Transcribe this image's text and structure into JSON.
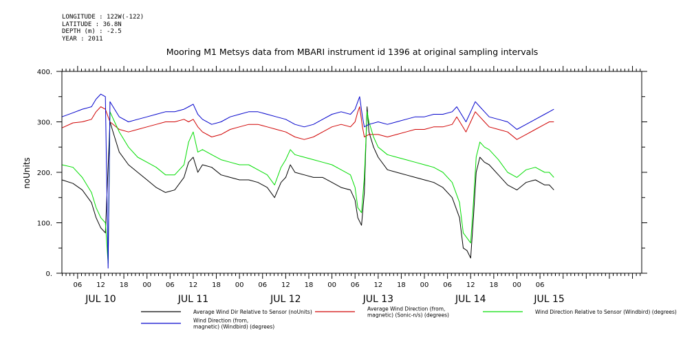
{
  "header": {
    "lines": [
      "LONGITUDE : 122W(-122)",
      "LATITUDE : 36.8N",
      "DEPTH (m) : -2.5",
      "YEAR : 2011"
    ]
  },
  "chart_data": {
    "type": "line",
    "title": "Mooring M1 Metsys data from MBARI instrument id 1396 at original sampling intervals",
    "ylabel": "noUnits",
    "xlabel": "",
    "ylim": [
      0,
      400
    ],
    "yticks": [
      0,
      100,
      200,
      300,
      400
    ],
    "xlim": [
      9.08,
      15.35
    ],
    "hour_ticks": [
      {
        "x": 9.25,
        "label": "06"
      },
      {
        "x": 9.5,
        "label": "12"
      },
      {
        "x": 9.75,
        "label": "18"
      },
      {
        "x": 10.0,
        "label": "00"
      },
      {
        "x": 10.25,
        "label": "06"
      },
      {
        "x": 10.5,
        "label": "12"
      },
      {
        "x": 10.75,
        "label": "18"
      },
      {
        "x": 11.0,
        "label": "00"
      },
      {
        "x": 11.25,
        "label": "06"
      },
      {
        "x": 11.5,
        "label": "12"
      },
      {
        "x": 11.75,
        "label": "18"
      },
      {
        "x": 12.0,
        "label": "00"
      },
      {
        "x": 12.25,
        "label": "06"
      },
      {
        "x": 12.5,
        "label": "12"
      },
      {
        "x": 12.75,
        "label": "18"
      },
      {
        "x": 13.0,
        "label": "00"
      },
      {
        "x": 13.25,
        "label": "06"
      },
      {
        "x": 13.5,
        "label": "12"
      },
      {
        "x": 13.75,
        "label": "18"
      },
      {
        "x": 14.0,
        "label": "00"
      },
      {
        "x": 14.25,
        "label": "06"
      }
    ],
    "date_labels": [
      {
        "x": 9.5,
        "label": "JUL 10"
      },
      {
        "x": 10.5,
        "label": "JUL 11"
      },
      {
        "x": 11.5,
        "label": "JUL 12"
      },
      {
        "x": 12.5,
        "label": "JUL 13"
      },
      {
        "x": 13.5,
        "label": "JUL 14"
      },
      {
        "x": 14.35,
        "label": "JUL 15"
      }
    ],
    "series": [
      {
        "name": "Average Wind Dir Relative to Sensor (noUnits)",
        "color": "#000000",
        "points": [
          [
            9.08,
            185
          ],
          [
            9.2,
            178
          ],
          [
            9.3,
            165
          ],
          [
            9.4,
            140
          ],
          [
            9.45,
            110
          ],
          [
            9.5,
            90
          ],
          [
            9.55,
            80
          ],
          [
            9.6,
            300
          ],
          [
            9.65,
            270
          ],
          [
            9.7,
            240
          ],
          [
            9.8,
            215
          ],
          [
            9.9,
            200
          ],
          [
            10.0,
            185
          ],
          [
            10.1,
            170
          ],
          [
            10.2,
            160
          ],
          [
            10.3,
            165
          ],
          [
            10.4,
            190
          ],
          [
            10.45,
            220
          ],
          [
            10.5,
            230
          ],
          [
            10.55,
            200
          ],
          [
            10.6,
            215
          ],
          [
            10.7,
            210
          ],
          [
            10.8,
            195
          ],
          [
            10.9,
            190
          ],
          [
            11.0,
            185
          ],
          [
            11.1,
            185
          ],
          [
            11.2,
            180
          ],
          [
            11.3,
            170
          ],
          [
            11.38,
            150
          ],
          [
            11.45,
            180
          ],
          [
            11.5,
            190
          ],
          [
            11.55,
            215
          ],
          [
            11.6,
            200
          ],
          [
            11.7,
            195
          ],
          [
            11.8,
            190
          ],
          [
            11.9,
            190
          ],
          [
            12.0,
            180
          ],
          [
            12.1,
            170
          ],
          [
            12.2,
            165
          ],
          [
            12.25,
            145
          ],
          [
            12.28,
            110
          ],
          [
            12.32,
            95
          ],
          [
            12.35,
            160
          ],
          [
            12.38,
            330
          ],
          [
            12.4,
            280
          ],
          [
            12.45,
            250
          ],
          [
            12.5,
            230
          ],
          [
            12.6,
            205
          ],
          [
            12.7,
            200
          ],
          [
            12.8,
            195
          ],
          [
            12.9,
            190
          ],
          [
            13.0,
            185
          ],
          [
            13.1,
            180
          ],
          [
            13.2,
            170
          ],
          [
            13.3,
            150
          ],
          [
            13.38,
            110
          ],
          [
            13.42,
            50
          ],
          [
            13.46,
            45
          ],
          [
            13.5,
            30
          ],
          [
            13.53,
            110
          ],
          [
            13.56,
            200
          ],
          [
            13.6,
            230
          ],
          [
            13.65,
            220
          ],
          [
            13.7,
            215
          ],
          [
            13.8,
            195
          ],
          [
            13.9,
            175
          ],
          [
            14.0,
            165
          ],
          [
            14.1,
            180
          ],
          [
            14.2,
            185
          ],
          [
            14.3,
            175
          ],
          [
            14.35,
            175
          ],
          [
            14.4,
            165
          ]
        ]
      },
      {
        "name": "Average Wind Direction (from, magnetic) (Sonic-n/s) (degrees)",
        "color": "#d00000",
        "points": [
          [
            9.08,
            288
          ],
          [
            9.2,
            298
          ],
          [
            9.3,
            300
          ],
          [
            9.4,
            305
          ],
          [
            9.45,
            320
          ],
          [
            9.5,
            330
          ],
          [
            9.55,
            325
          ],
          [
            9.6,
            300
          ],
          [
            9.7,
            285
          ],
          [
            9.8,
            280
          ],
          [
            9.9,
            285
          ],
          [
            10.0,
            290
          ],
          [
            10.1,
            295
          ],
          [
            10.2,
            300
          ],
          [
            10.3,
            300
          ],
          [
            10.4,
            305
          ],
          [
            10.45,
            300
          ],
          [
            10.5,
            305
          ],
          [
            10.55,
            290
          ],
          [
            10.6,
            280
          ],
          [
            10.7,
            270
          ],
          [
            10.8,
            275
          ],
          [
            10.9,
            285
          ],
          [
            11.0,
            290
          ],
          [
            11.1,
            295
          ],
          [
            11.2,
            295
          ],
          [
            11.3,
            290
          ],
          [
            11.4,
            285
          ],
          [
            11.5,
            280
          ],
          [
            11.6,
            270
          ],
          [
            11.7,
            265
          ],
          [
            11.8,
            270
          ],
          [
            11.9,
            280
          ],
          [
            12.0,
            290
          ],
          [
            12.1,
            295
          ],
          [
            12.2,
            290
          ],
          [
            12.25,
            300
          ],
          [
            12.28,
            320
          ],
          [
            12.3,
            330
          ],
          [
            12.33,
            290
          ],
          [
            12.35,
            270
          ],
          [
            12.4,
            275
          ],
          [
            12.5,
            275
          ],
          [
            12.6,
            270
          ],
          [
            12.7,
            275
          ],
          [
            12.8,
            280
          ],
          [
            12.9,
            285
          ],
          [
            13.0,
            285
          ],
          [
            13.1,
            290
          ],
          [
            13.2,
            290
          ],
          [
            13.3,
            295
          ],
          [
            13.35,
            310
          ],
          [
            13.4,
            295
          ],
          [
            13.45,
            280
          ],
          [
            13.5,
            300
          ],
          [
            13.55,
            320
          ],
          [
            13.6,
            310
          ],
          [
            13.65,
            300
          ],
          [
            13.7,
            290
          ],
          [
            13.8,
            285
          ],
          [
            13.9,
            280
          ],
          [
            14.0,
            265
          ],
          [
            14.1,
            275
          ],
          [
            14.2,
            285
          ],
          [
            14.3,
            295
          ],
          [
            14.35,
            300
          ],
          [
            14.4,
            300
          ]
        ]
      },
      {
        "name": "Wind Direction Relative to Sensor (Windbird) (degrees)",
        "color": "#00dd00",
        "points": [
          [
            9.08,
            215
          ],
          [
            9.2,
            210
          ],
          [
            9.3,
            190
          ],
          [
            9.4,
            160
          ],
          [
            9.45,
            130
          ],
          [
            9.5,
            110
          ],
          [
            9.55,
            100
          ],
          [
            9.58,
            20
          ],
          [
            9.6,
            320
          ],
          [
            9.65,
            300
          ],
          [
            9.7,
            280
          ],
          [
            9.8,
            250
          ],
          [
            9.9,
            230
          ],
          [
            10.0,
            220
          ],
          [
            10.1,
            210
          ],
          [
            10.2,
            195
          ],
          [
            10.3,
            195
          ],
          [
            10.4,
            215
          ],
          [
            10.45,
            260
          ],
          [
            10.5,
            280
          ],
          [
            10.55,
            240
          ],
          [
            10.6,
            245
          ],
          [
            10.7,
            235
          ],
          [
            10.8,
            225
          ],
          [
            10.9,
            220
          ],
          [
            11.0,
            215
          ],
          [
            11.1,
            215
          ],
          [
            11.2,
            205
          ],
          [
            11.3,
            195
          ],
          [
            11.38,
            175
          ],
          [
            11.45,
            210
          ],
          [
            11.5,
            225
          ],
          [
            11.55,
            245
          ],
          [
            11.6,
            235
          ],
          [
            11.7,
            230
          ],
          [
            11.8,
            225
          ],
          [
            11.9,
            220
          ],
          [
            12.0,
            215
          ],
          [
            12.1,
            205
          ],
          [
            12.2,
            195
          ],
          [
            12.25,
            170
          ],
          [
            12.28,
            130
          ],
          [
            12.32,
            120
          ],
          [
            12.35,
            190
          ],
          [
            12.38,
            320
          ],
          [
            12.4,
            300
          ],
          [
            12.45,
            270
          ],
          [
            12.5,
            250
          ],
          [
            12.6,
            235
          ],
          [
            12.7,
            230
          ],
          [
            12.8,
            225
          ],
          [
            12.9,
            220
          ],
          [
            13.0,
            215
          ],
          [
            13.1,
            210
          ],
          [
            13.2,
            200
          ],
          [
            13.3,
            180
          ],
          [
            13.38,
            140
          ],
          [
            13.42,
            80
          ],
          [
            13.46,
            70
          ],
          [
            13.5,
            60
          ],
          [
            13.53,
            140
          ],
          [
            13.56,
            230
          ],
          [
            13.6,
            260
          ],
          [
            13.65,
            250
          ],
          [
            13.7,
            245
          ],
          [
            13.8,
            225
          ],
          [
            13.9,
            200
          ],
          [
            14.0,
            190
          ],
          [
            14.1,
            205
          ],
          [
            14.2,
            210
          ],
          [
            14.3,
            200
          ],
          [
            14.35,
            200
          ],
          [
            14.4,
            190
          ]
        ]
      },
      {
        "name": "Wind Direction (from, magnetic) (Windbird) (degrees)",
        "color": "#0000cc",
        "points": [
          [
            9.08,
            310
          ],
          [
            9.2,
            318
          ],
          [
            9.3,
            325
          ],
          [
            9.4,
            330
          ],
          [
            9.45,
            345
          ],
          [
            9.5,
            355
          ],
          [
            9.55,
            350
          ],
          [
            9.58,
            10
          ],
          [
            9.6,
            340
          ],
          [
            9.7,
            310
          ],
          [
            9.8,
            300
          ],
          [
            9.9,
            305
          ],
          [
            10.0,
            310
          ],
          [
            10.1,
            315
          ],
          [
            10.2,
            320
          ],
          [
            10.3,
            320
          ],
          [
            10.4,
            325
          ],
          [
            10.45,
            330
          ],
          [
            10.5,
            335
          ],
          [
            10.55,
            315
          ],
          [
            10.6,
            305
          ],
          [
            10.7,
            295
          ],
          [
            10.8,
            300
          ],
          [
            10.9,
            310
          ],
          [
            11.0,
            315
          ],
          [
            11.1,
            320
          ],
          [
            11.2,
            320
          ],
          [
            11.3,
            315
          ],
          [
            11.4,
            310
          ],
          [
            11.5,
            305
          ],
          [
            11.6,
            295
          ],
          [
            11.7,
            290
          ],
          [
            11.8,
            295
          ],
          [
            11.9,
            305
          ],
          [
            12.0,
            315
          ],
          [
            12.1,
            320
          ],
          [
            12.2,
            315
          ],
          [
            12.25,
            325
          ],
          [
            12.28,
            340
          ],
          [
            12.3,
            350
          ],
          [
            12.33,
            310
          ],
          [
            12.35,
            290
          ],
          [
            12.4,
            295
          ],
          [
            12.5,
            300
          ],
          [
            12.6,
            295
          ],
          [
            12.7,
            300
          ],
          [
            12.8,
            305
          ],
          [
            12.9,
            310
          ],
          [
            13.0,
            310
          ],
          [
            13.1,
            315
          ],
          [
            13.2,
            315
          ],
          [
            13.3,
            320
          ],
          [
            13.35,
            330
          ],
          [
            13.4,
            315
          ],
          [
            13.45,
            300
          ],
          [
            13.5,
            320
          ],
          [
            13.55,
            340
          ],
          [
            13.6,
            330
          ],
          [
            13.65,
            320
          ],
          [
            13.7,
            310
          ],
          [
            13.8,
            305
          ],
          [
            13.9,
            300
          ],
          [
            14.0,
            285
          ],
          [
            14.1,
            295
          ],
          [
            14.2,
            305
          ],
          [
            14.3,
            315
          ],
          [
            14.35,
            320
          ],
          [
            14.4,
            325
          ]
        ]
      }
    ],
    "legend": [
      {
        "lines": [
          "Average Wind Dir Relative to Sensor (noUnits)"
        ],
        "color": "#000000"
      },
      {
        "lines": [
          "Average Wind Direction (from,",
          "magnetic) (Sonic-n/s) (degrees)"
        ],
        "color": "#d00000"
      },
      {
        "lines": [
          "Wind Direction Relative to Sensor (Windbird) (degrees)"
        ],
        "color": "#00dd00"
      },
      {
        "lines": [
          "Wind Direction (from,",
          "magnetic) (Windbird) (degrees)"
        ],
        "color": "#0000cc"
      }
    ]
  }
}
